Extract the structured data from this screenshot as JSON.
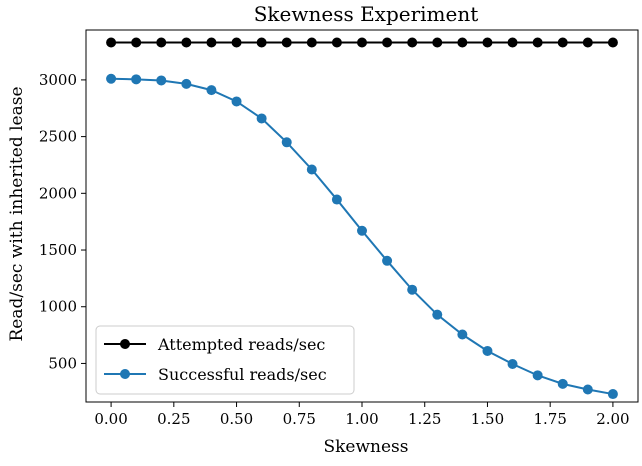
{
  "chart_data": {
    "type": "line",
    "title": "Skewness Experiment",
    "xlabel": "Skewness",
    "ylabel": "Read/sec with inherited lease",
    "xlim": [
      -0.1,
      2.1
    ],
    "ylim": [
      160,
      3440
    ],
    "x_ticks": [
      0.0,
      0.25,
      0.5,
      0.75,
      1.0,
      1.25,
      1.5,
      1.75,
      2.0
    ],
    "x_tick_labels": [
      "0.00",
      "0.25",
      "0.50",
      "0.75",
      "1.00",
      "1.25",
      "1.50",
      "1.75",
      "2.00"
    ],
    "y_ticks": [
      500,
      1000,
      1500,
      2000,
      2500,
      3000
    ],
    "y_tick_labels": [
      "500",
      "1000",
      "1500",
      "2000",
      "2500",
      "3000"
    ],
    "grid": false,
    "legend_position": "lower-left",
    "x": [
      0.0,
      0.1,
      0.2,
      0.3,
      0.4,
      0.5,
      0.6,
      0.7,
      0.8,
      0.9,
      1.0,
      1.1,
      1.2,
      1.3,
      1.4,
      1.5,
      1.6,
      1.7,
      1.8,
      1.9,
      2.0
    ],
    "series": [
      {
        "name": "Attempted reads/sec",
        "color": "#000000",
        "marker": "circle",
        "values": [
          3330,
          3330,
          3330,
          3330,
          3330,
          3330,
          3330,
          3330,
          3330,
          3330,
          3330,
          3330,
          3330,
          3330,
          3330,
          3330,
          3330,
          3330,
          3330,
          3330,
          3330
        ]
      },
      {
        "name": "Successful reads/sec",
        "color": "#1f77b4",
        "marker": "circle",
        "values": [
          3010,
          3005,
          2995,
          2965,
          2910,
          2810,
          2660,
          2450,
          2210,
          1945,
          1670,
          1405,
          1150,
          930,
          755,
          610,
          495,
          395,
          320,
          270,
          230
        ]
      }
    ]
  }
}
